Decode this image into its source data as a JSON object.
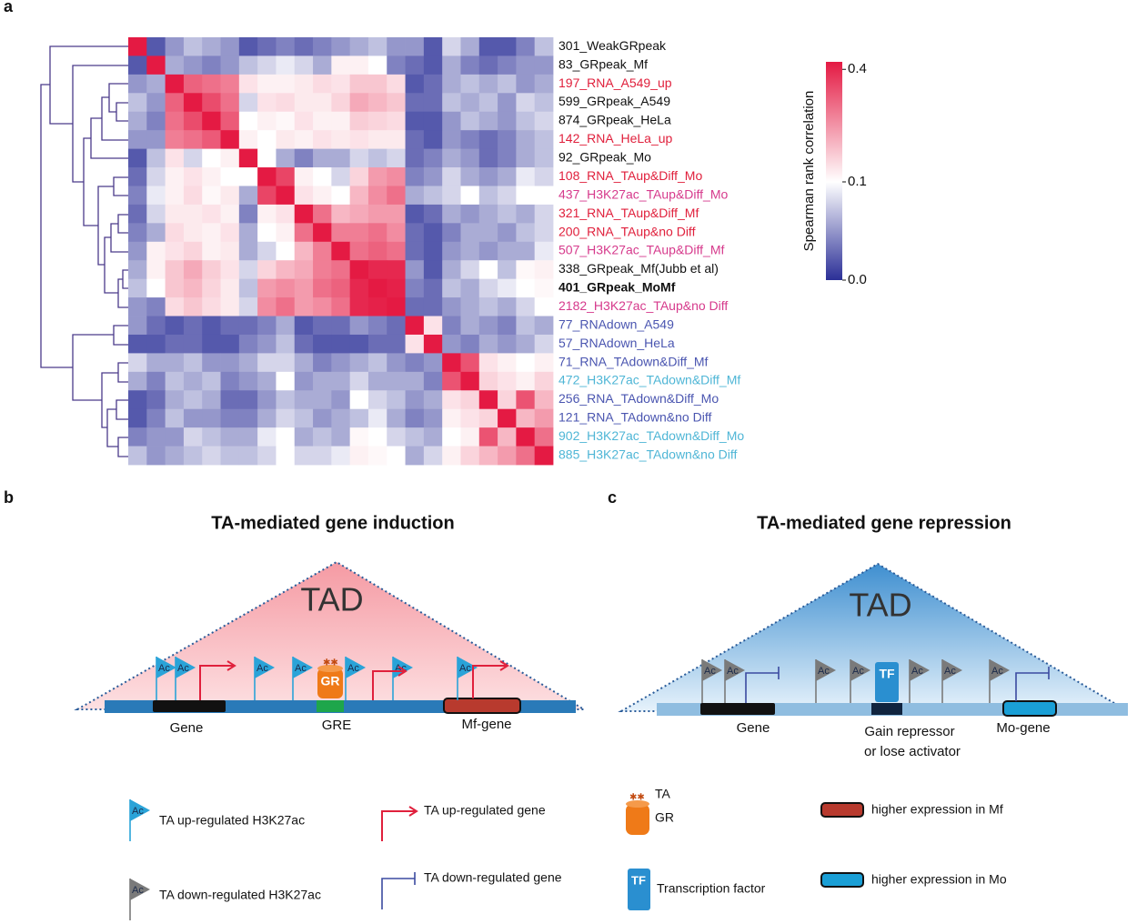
{
  "chart_data": {
    "type": "heatmap",
    "panel": "a",
    "rows": [
      "301_WeakGRpeak",
      "83_GRpeak_Mf",
      "197_RNA_A549_up",
      "599_GRpeak_A549",
      "874_GRpeak_HeLa",
      "142_RNA_HeLa_up",
      "92_GRpeak_Mo",
      "108_RNA_TAup&Diff_Mo",
      "437_H3K27ac_TAup&Diff_Mo",
      "321_RNA_TAup&Diff_Mf",
      "200_RNA_TAup&no Diff",
      "507_H3K27ac_TAup&Diff_Mf",
      "338_GRpeak_Mf(Jubb et al)",
      "401_GRpeak_MoMf",
      "2182_H3K27ac_TAup&no Diff",
      "77_RNAdown_A549",
      "57_RNAdown_HeLa",
      "71_RNA_TAdown&Diff_Mf",
      "472_H3K27ac_TAdown&Diff_Mf",
      "256_RNA_TAdown&Diff_Mo",
      "121_RNA_TAdown&no Diff",
      "902_H3K27ac_TAdown&Diff_Mo",
      "885_H3K27ac_TAdown&no Diff"
    ],
    "label_colors": [
      "#111111",
      "#111111",
      "#e0203c",
      "#111111",
      "#111111",
      "#e0203c",
      "#111111",
      "#e0203c",
      "#d63a8c",
      "#e0203c",
      "#e0203c",
      "#d63a8c",
      "#111111",
      "#111111",
      "#d63a8c",
      "#4a55b0",
      "#4a55b0",
      "#4a55b0",
      "#4fb6d6",
      "#4a55b0",
      "#4a55b0",
      "#4fb6d6",
      "#4fb6d6"
    ],
    "bold_rows": [
      13
    ],
    "values": [
      [
        0.42,
        0.02,
        0.05,
        0.07,
        0.06,
        0.05,
        0.02,
        0.03,
        0.04,
        0.03,
        0.04,
        0.05,
        0.06,
        0.07,
        0.05,
        0.05,
        0.02,
        0.08,
        0.06,
        0.02,
        0.02,
        0.04,
        0.07
      ],
      [
        0.02,
        0.42,
        0.06,
        0.05,
        0.04,
        0.05,
        0.07,
        0.08,
        0.09,
        0.08,
        0.06,
        0.12,
        0.12,
        0.1,
        0.04,
        0.03,
        0.02,
        0.06,
        0.04,
        0.03,
        0.04,
        0.05,
        0.05
      ],
      [
        0.05,
        0.06,
        0.42,
        0.32,
        0.3,
        0.28,
        0.14,
        0.12,
        0.12,
        0.13,
        0.15,
        0.14,
        0.18,
        0.18,
        0.15,
        0.02,
        0.03,
        0.06,
        0.07,
        0.06,
        0.07,
        0.05,
        0.06
      ],
      [
        0.07,
        0.05,
        0.32,
        0.42,
        0.35,
        0.3,
        0.08,
        0.14,
        0.15,
        0.13,
        0.13,
        0.16,
        0.22,
        0.2,
        0.18,
        0.03,
        0.03,
        0.07,
        0.06,
        0.07,
        0.05,
        0.08,
        0.07
      ],
      [
        0.06,
        0.04,
        0.3,
        0.35,
        0.42,
        0.33,
        0.1,
        0.12,
        0.11,
        0.14,
        0.12,
        0.12,
        0.17,
        0.16,
        0.15,
        0.02,
        0.02,
        0.05,
        0.07,
        0.06,
        0.05,
        0.07,
        0.08
      ],
      [
        0.05,
        0.05,
        0.28,
        0.3,
        0.33,
        0.42,
        0.12,
        0.1,
        0.13,
        0.12,
        0.14,
        0.13,
        0.14,
        0.13,
        0.13,
        0.03,
        0.02,
        0.05,
        0.04,
        0.03,
        0.04,
        0.06,
        0.07
      ],
      [
        0.02,
        0.07,
        0.14,
        0.08,
        0.1,
        0.12,
        0.42,
        0.1,
        0.06,
        0.04,
        0.06,
        0.06,
        0.08,
        0.07,
        0.08,
        0.03,
        0.04,
        0.06,
        0.05,
        0.03,
        0.04,
        0.06,
        0.07
      ],
      [
        0.03,
        0.08,
        0.12,
        0.14,
        0.12,
        0.1,
        0.1,
        0.42,
        0.36,
        0.12,
        0.1,
        0.08,
        0.16,
        0.24,
        0.26,
        0.04,
        0.05,
        0.08,
        0.06,
        0.05,
        0.06,
        0.09,
        0.08
      ],
      [
        0.04,
        0.09,
        0.12,
        0.15,
        0.11,
        0.13,
        0.06,
        0.36,
        0.42,
        0.14,
        0.12,
        0.1,
        0.2,
        0.26,
        0.3,
        0.06,
        0.07,
        0.08,
        0.1,
        0.07,
        0.08,
        0.1,
        0.1
      ],
      [
        0.03,
        0.08,
        0.13,
        0.13,
        0.14,
        0.12,
        0.04,
        0.12,
        0.14,
        0.42,
        0.3,
        0.2,
        0.22,
        0.24,
        0.24,
        0.02,
        0.03,
        0.06,
        0.05,
        0.06,
        0.07,
        0.06,
        0.08
      ],
      [
        0.04,
        0.06,
        0.15,
        0.13,
        0.12,
        0.14,
        0.06,
        0.1,
        0.12,
        0.3,
        0.42,
        0.28,
        0.28,
        0.3,
        0.26,
        0.03,
        0.02,
        0.04,
        0.06,
        0.06,
        0.05,
        0.07,
        0.08
      ],
      [
        0.05,
        0.12,
        0.14,
        0.16,
        0.12,
        0.13,
        0.06,
        0.08,
        0.1,
        0.2,
        0.28,
        0.42,
        0.3,
        0.32,
        0.3,
        0.03,
        0.02,
        0.05,
        0.06,
        0.05,
        0.06,
        0.06,
        0.09
      ],
      [
        0.06,
        0.12,
        0.18,
        0.22,
        0.17,
        0.14,
        0.08,
        0.16,
        0.2,
        0.22,
        0.28,
        0.3,
        0.42,
        0.4,
        0.4,
        0.05,
        0.02,
        0.06,
        0.08,
        0.1,
        0.07,
        0.11,
        0.12
      ],
      [
        0.07,
        0.1,
        0.18,
        0.2,
        0.16,
        0.13,
        0.07,
        0.24,
        0.26,
        0.24,
        0.3,
        0.32,
        0.4,
        0.42,
        0.41,
        0.04,
        0.03,
        0.07,
        0.06,
        0.08,
        0.09,
        0.1,
        0.11
      ],
      [
        0.05,
        0.04,
        0.15,
        0.18,
        0.15,
        0.13,
        0.08,
        0.26,
        0.3,
        0.24,
        0.26,
        0.3,
        0.4,
        0.41,
        0.42,
        0.03,
        0.03,
        0.05,
        0.06,
        0.07,
        0.06,
        0.08,
        0.1
      ],
      [
        0.05,
        0.03,
        0.02,
        0.03,
        0.02,
        0.03,
        0.03,
        0.04,
        0.06,
        0.02,
        0.03,
        0.03,
        0.05,
        0.04,
        0.03,
        0.42,
        0.14,
        0.04,
        0.06,
        0.05,
        0.04,
        0.07,
        0.06
      ],
      [
        0.02,
        0.02,
        0.03,
        0.03,
        0.02,
        0.02,
        0.04,
        0.05,
        0.07,
        0.03,
        0.02,
        0.02,
        0.02,
        0.03,
        0.03,
        0.14,
        0.42,
        0.05,
        0.04,
        0.06,
        0.05,
        0.06,
        0.08
      ],
      [
        0.08,
        0.06,
        0.06,
        0.07,
        0.05,
        0.05,
        0.06,
        0.08,
        0.08,
        0.06,
        0.04,
        0.05,
        0.06,
        0.07,
        0.05,
        0.04,
        0.05,
        0.42,
        0.34,
        0.14,
        0.12,
        0.1,
        0.12
      ],
      [
        0.06,
        0.04,
        0.07,
        0.06,
        0.07,
        0.04,
        0.05,
        0.06,
        0.1,
        0.05,
        0.06,
        0.06,
        0.08,
        0.06,
        0.06,
        0.06,
        0.04,
        0.34,
        0.42,
        0.16,
        0.14,
        0.12,
        0.16
      ],
      [
        0.02,
        0.03,
        0.06,
        0.07,
        0.06,
        0.03,
        0.03,
        0.05,
        0.07,
        0.06,
        0.06,
        0.05,
        0.1,
        0.08,
        0.07,
        0.05,
        0.06,
        0.14,
        0.16,
        0.42,
        0.16,
        0.34,
        0.2
      ],
      [
        0.02,
        0.04,
        0.07,
        0.05,
        0.05,
        0.04,
        0.04,
        0.06,
        0.08,
        0.07,
        0.05,
        0.06,
        0.07,
        0.09,
        0.06,
        0.04,
        0.05,
        0.12,
        0.14,
        0.16,
        0.42,
        0.2,
        0.24
      ],
      [
        0.04,
        0.05,
        0.05,
        0.08,
        0.07,
        0.06,
        0.06,
        0.09,
        0.1,
        0.06,
        0.07,
        0.06,
        0.11,
        0.1,
        0.08,
        0.07,
        0.06,
        0.1,
        0.12,
        0.34,
        0.2,
        0.42,
        0.3
      ],
      [
        0.07,
        0.05,
        0.06,
        0.07,
        0.08,
        0.07,
        0.07,
        0.08,
        0.1,
        0.08,
        0.08,
        0.09,
        0.12,
        0.11,
        0.1,
        0.06,
        0.08,
        0.12,
        0.16,
        0.2,
        0.24,
        0.3,
        0.42
      ]
    ],
    "colorbar_label": "Spearman rank correlation",
    "clim": [
      0,
      0.42
    ],
    "cticks": [
      {
        "value": 0,
        "label": "0.0"
      },
      0.1,
      0.4
    ],
    "colormap": {
      "low": "#2b2f97",
      "mid": "#ffffff",
      "high": "#e41a43",
      "center": 0.1
    }
  },
  "panel_b": {
    "letter": "b",
    "title": "TA-mediated  gene induction",
    "tad": "TAD",
    "ac": "Ac",
    "gr": "GR",
    "gene": "Gene",
    "gre": "GRE",
    "target": "Mf-gene"
  },
  "panel_c": {
    "letter": "c",
    "title": "TA-mediated  gene repression",
    "tad": "TAD",
    "ac": "Ac",
    "tf": "TF",
    "gene": "Gene",
    "site_line1": "Gain repressor",
    "site_line2": "or lose activator",
    "target": "Mo-gene"
  },
  "legend": {
    "ac": "Ac",
    "up_ac": "TA up-regulated H3K27ac",
    "down_ac": "TA down-regulated H3K27ac",
    "up_gene": "TA up-regulated gene",
    "down_gene": "TA down-regulated gene",
    "ta": "TA",
    "gr": "GR",
    "tf": "TF",
    "tf_text": "Transcription factor",
    "mf": "higher expression in Mf",
    "mo": "higher expression in Mo"
  }
}
